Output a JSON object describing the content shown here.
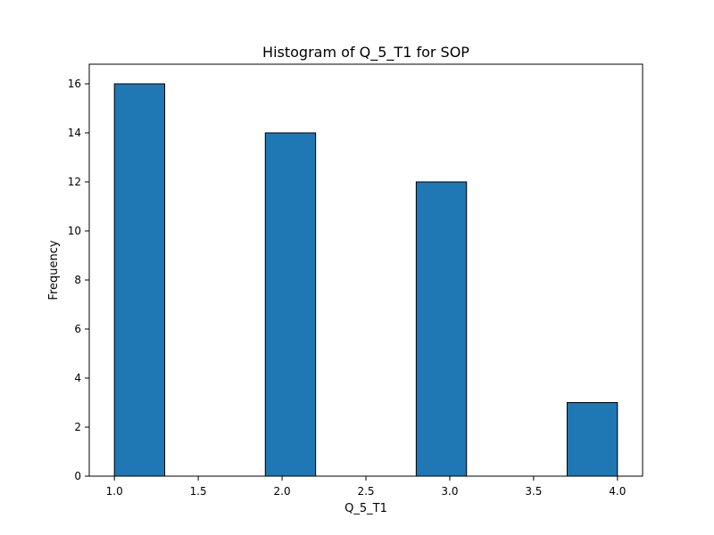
{
  "chart_data": {
    "type": "bar",
    "title": "Histogram of Q_5_T1 for SOP",
    "xlabel": "Q_5_T1",
    "ylabel": "Frequency",
    "xlim": [
      0.85,
      4.15
    ],
    "ylim": [
      0,
      16.8
    ],
    "bins": [
      {
        "start": 1.0,
        "end": 1.3,
        "value": 16
      },
      {
        "start": 1.3,
        "end": 1.6,
        "value": 0
      },
      {
        "start": 1.6,
        "end": 1.9,
        "value": 0
      },
      {
        "start": 1.9,
        "end": 2.2,
        "value": 14
      },
      {
        "start": 2.2,
        "end": 2.5,
        "value": 0
      },
      {
        "start": 2.5,
        "end": 2.8,
        "value": 0
      },
      {
        "start": 2.8,
        "end": 3.1,
        "value": 12
      },
      {
        "start": 3.1,
        "end": 3.4,
        "value": 0
      },
      {
        "start": 3.4,
        "end": 3.7,
        "value": 0
      },
      {
        "start": 3.7,
        "end": 4.0,
        "value": 3
      }
    ],
    "xticks": [
      "1.0",
      "1.5",
      "2.0",
      "2.5",
      "3.0",
      "3.5",
      "4.0"
    ],
    "yticks": [
      "0",
      "2",
      "4",
      "6",
      "8",
      "10",
      "12",
      "14",
      "16"
    ],
    "grid": false,
    "legend": "none",
    "bar_color": "#1f77b4",
    "edge_color": "#000000"
  }
}
